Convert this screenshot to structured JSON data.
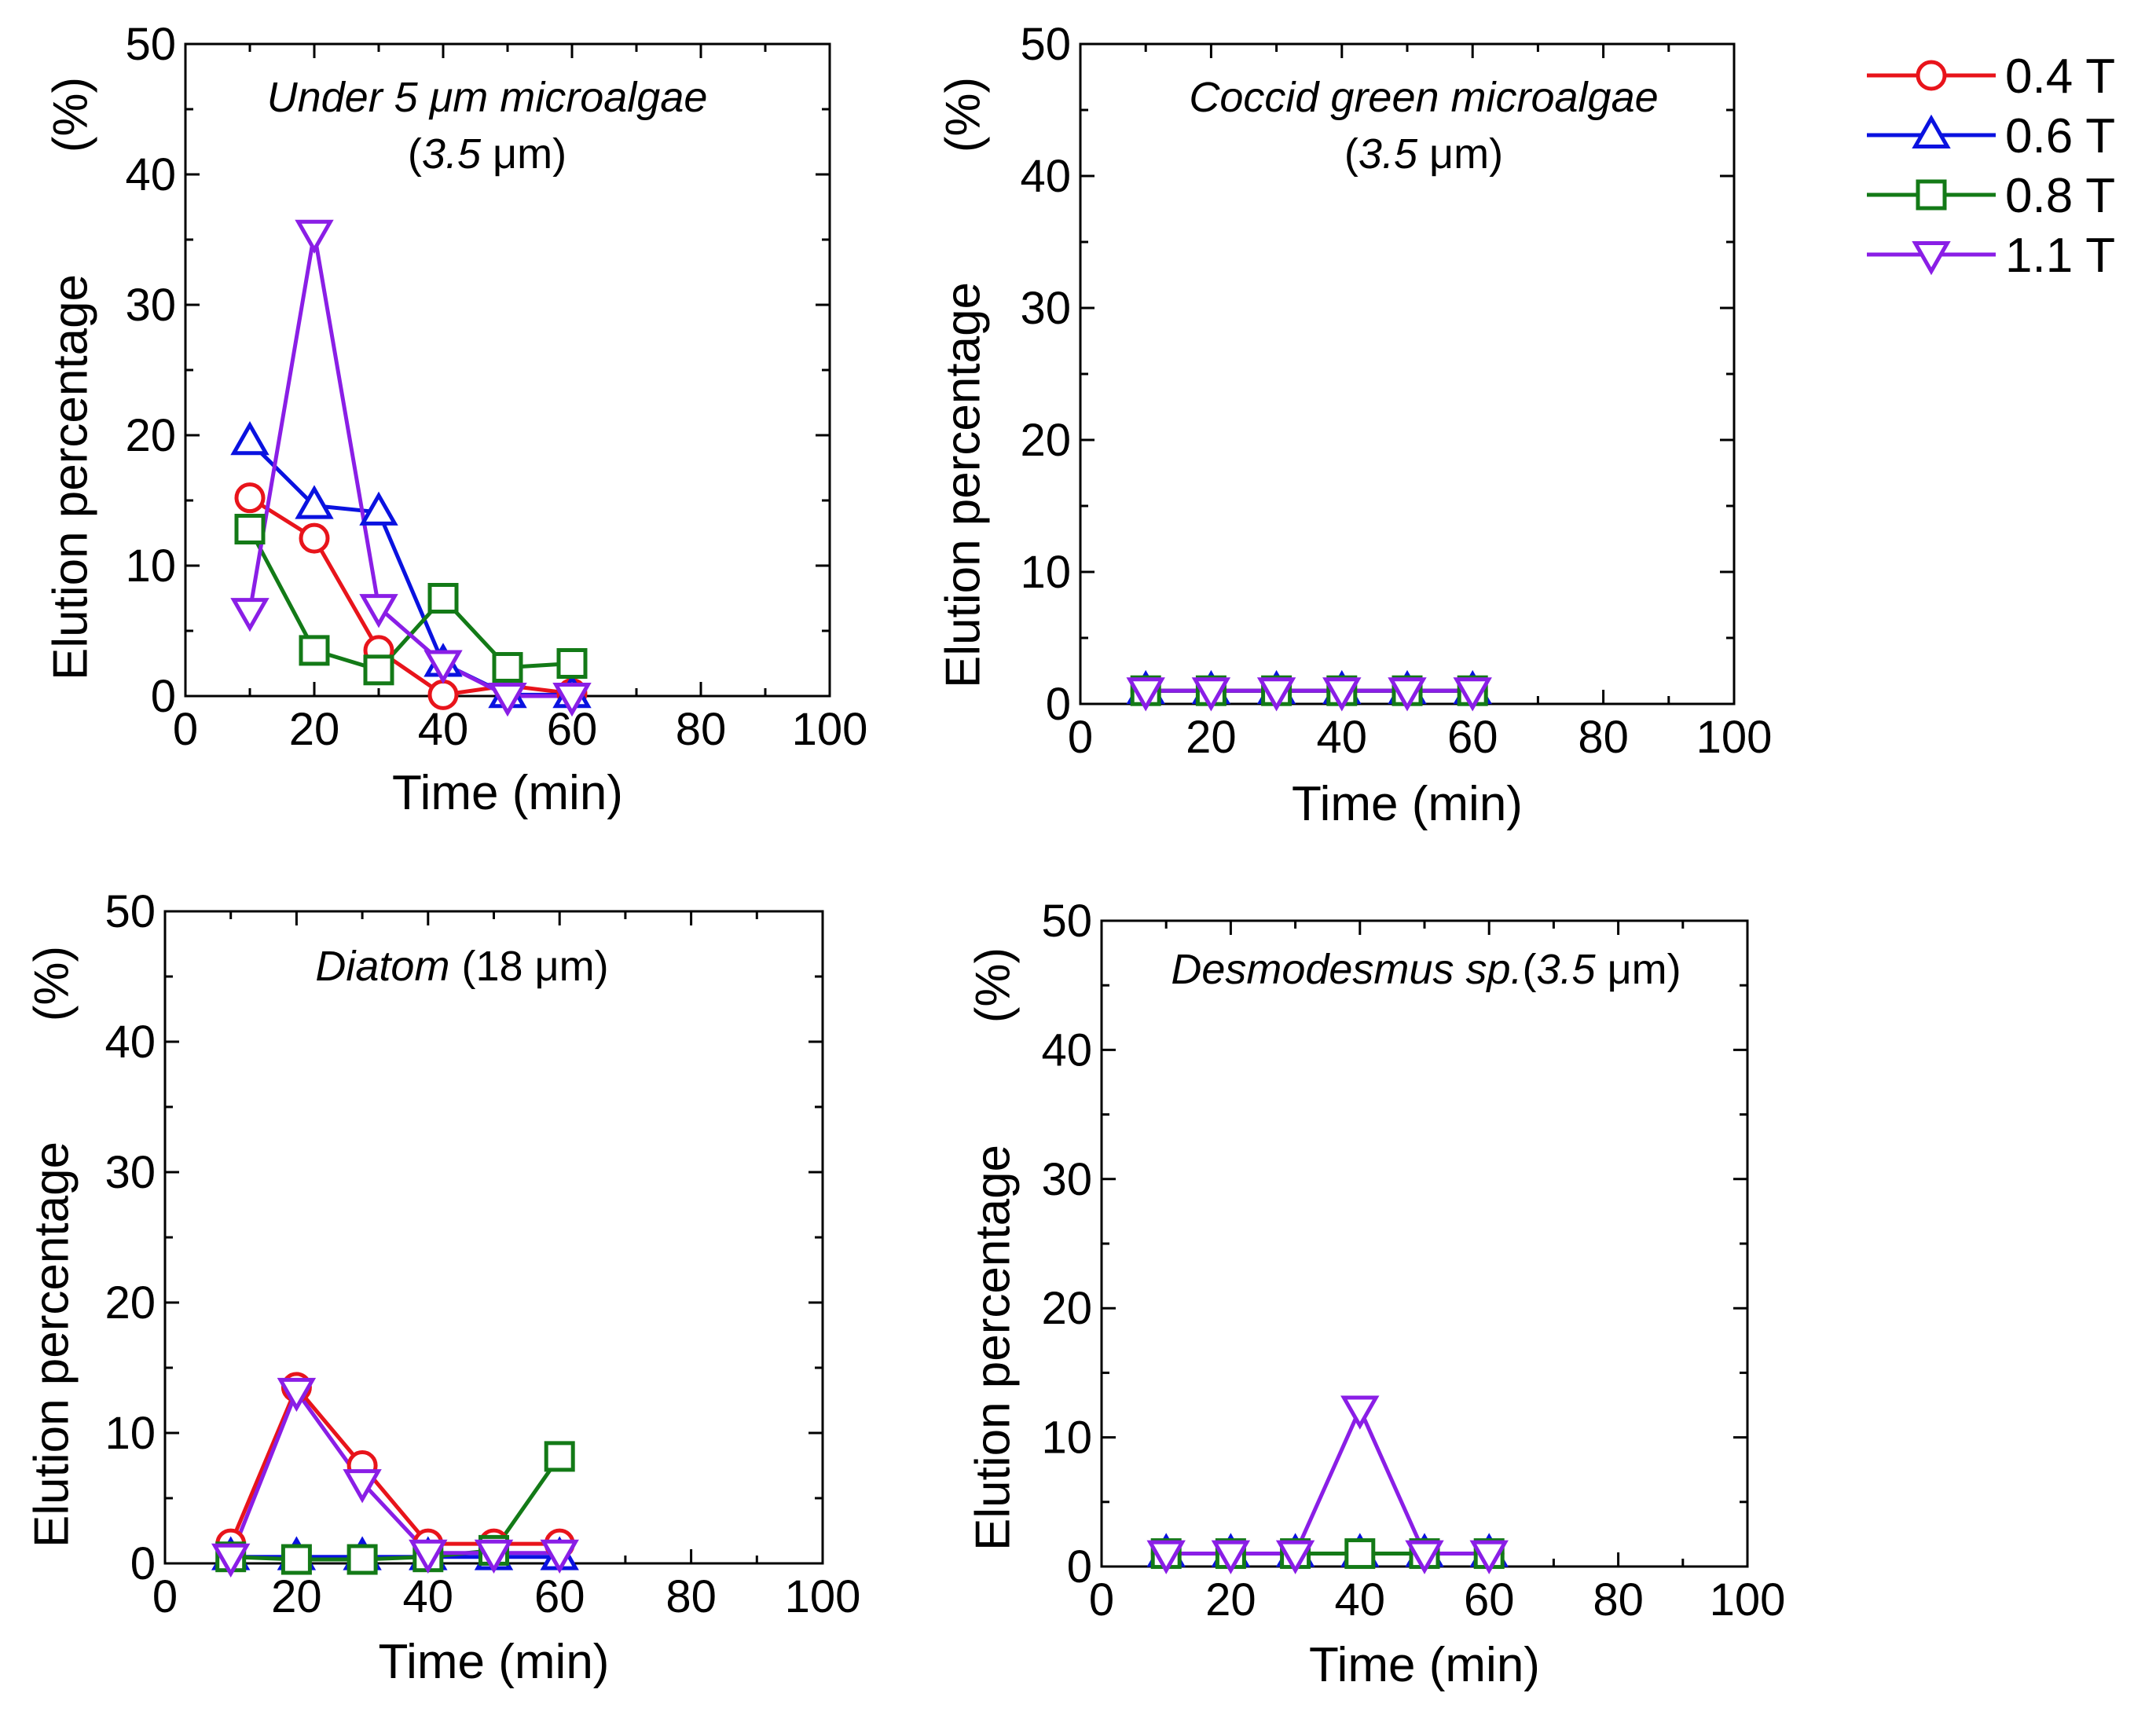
{
  "legend": {
    "entries": [
      {
        "label": "0.4 T",
        "color": "#e8141b",
        "marker": "circle"
      },
      {
        "label": "0.6 T",
        "color": "#0a12e0",
        "marker": "triangle-up"
      },
      {
        "label": "0.8 T",
        "color": "#137a17",
        "marker": "square"
      },
      {
        "label": "1.1 T",
        "color": "#8a1ee6",
        "marker": "triangle-down"
      }
    ]
  },
  "chart_data": [
    {
      "type": "line",
      "title_italic": "Under 5 μm microalgae",
      "title_line2_italic": "3.5",
      "title_line2_prefix": "(",
      "title_line2_suffix": " μm)",
      "xlabel": "Time (min)",
      "ylabel": "Elution percentage",
      "ylabel_unit": "(%)",
      "xlim": [
        0,
        100
      ],
      "ylim": [
        0,
        50
      ],
      "xticks": [
        "0",
        "20",
        "40",
        "60",
        "80",
        "100"
      ],
      "yticks": [
        "0",
        "10",
        "20",
        "30",
        "40",
        "50"
      ],
      "x": [
        10,
        20,
        30,
        40,
        50,
        60
      ],
      "series": [
        {
          "name": "0.4 T",
          "values": [
            15.2,
            12.1,
            3.5,
            0.1,
            0.8,
            0.2
          ]
        },
        {
          "name": "0.6 T",
          "values": [
            19.5,
            14.6,
            14.1,
            2.5,
            0.1,
            0.1
          ]
        },
        {
          "name": "0.8 T",
          "values": [
            12.8,
            3.5,
            2.0,
            7.5,
            2.2,
            2.5
          ]
        },
        {
          "name": "1.1 T",
          "values": [
            6.5,
            35.5,
            6.8,
            2.5,
            0.0,
            0.0
          ]
        }
      ]
    },
    {
      "type": "line",
      "title_italic": "Coccid green microalgae",
      "title_line2_italic": "3.5",
      "title_line2_prefix": "(",
      "title_line2_suffix": " μm)",
      "xlabel": "Time (min)",
      "ylabel": "Elution percentage",
      "ylabel_unit": "(%)",
      "xlim": [
        0,
        100
      ],
      "ylim": [
        0,
        50
      ],
      "xticks": [
        "0",
        "20",
        "40",
        "60",
        "80",
        "100"
      ],
      "yticks": [
        "0",
        "10",
        "20",
        "30",
        "40",
        "50"
      ],
      "x": [
        10,
        20,
        30,
        40,
        50,
        60
      ],
      "series": [
        {
          "name": "0.4 T",
          "values": [
            1,
            1,
            1,
            1,
            1,
            1
          ]
        },
        {
          "name": "0.6 T",
          "values": [
            1,
            1,
            1,
            1,
            1,
            1
          ]
        },
        {
          "name": "0.8 T",
          "values": [
            1,
            1,
            1,
            1,
            1,
            1
          ]
        },
        {
          "name": "1.1 T",
          "values": [
            1,
            1,
            1,
            1,
            1,
            1
          ]
        }
      ]
    },
    {
      "type": "line",
      "title_italic": "Diatom",
      "title_suffix": " (18 μm)",
      "xlabel": "Time (min)",
      "ylabel": "Elution percentage",
      "ylabel_unit": "(%)",
      "xlim": [
        0,
        100
      ],
      "ylim": [
        0,
        50
      ],
      "xticks": [
        "0",
        "20",
        "40",
        "60",
        "80",
        "100"
      ],
      "yticks": [
        "0",
        "10",
        "20",
        "30",
        "40",
        "50"
      ],
      "x": [
        10,
        20,
        30,
        40,
        50,
        60
      ],
      "series": [
        {
          "name": "0.4 T",
          "values": [
            1.5,
            13.5,
            7.5,
            1.5,
            1.5,
            1.5
          ]
        },
        {
          "name": "0.6 T",
          "values": [
            0.5,
            0.5,
            0.5,
            0.5,
            0.5,
            0.5
          ]
        },
        {
          "name": "0.8 T",
          "values": [
            0.5,
            0.3,
            0.3,
            0.5,
            1.0,
            8.2
          ]
        },
        {
          "name": "1.1 T",
          "values": [
            0.5,
            13.2,
            6.2,
            0.8,
            0.8,
            0.8
          ]
        }
      ]
    },
    {
      "type": "line",
      "title_italic": "Desmodesmus sp.",
      "title_paren_italic": "3.5",
      "title_paren_prefix": "(",
      "title_paren_suffix": " μm)",
      "xlabel": "Time (min)",
      "ylabel": "Elution percentage",
      "ylabel_unit": "(%)",
      "xlim": [
        0,
        100
      ],
      "ylim": [
        0,
        50
      ],
      "xticks": [
        "0",
        "20",
        "40",
        "60",
        "80",
        "100"
      ],
      "yticks": [
        "0",
        "10",
        "20",
        "30",
        "40",
        "50"
      ],
      "x": [
        10,
        20,
        30,
        40,
        50,
        60
      ],
      "series": [
        {
          "name": "0.4 T",
          "values": [
            1,
            1,
            1,
            1,
            1,
            1
          ]
        },
        {
          "name": "0.6 T",
          "values": [
            1,
            1,
            1,
            1,
            1,
            1
          ]
        },
        {
          "name": "0.8 T",
          "values": [
            1,
            1,
            1,
            1,
            1,
            1
          ]
        },
        {
          "name": "1.1 T",
          "values": [
            1,
            1,
            1,
            12.2,
            1,
            1
          ]
        }
      ]
    }
  ]
}
